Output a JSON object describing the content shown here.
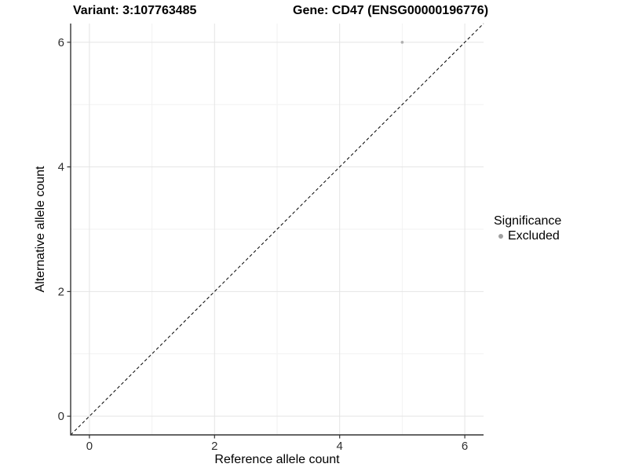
{
  "header": {
    "variant_title": "Variant: 3:107763485",
    "gene_title": "Gene: CD47 (ENSG00000196776)"
  },
  "chart_data": {
    "type": "scatter",
    "xlabel": "Reference allele count",
    "ylabel": "Alternative allele count",
    "xlim": [
      -0.3,
      6.3
    ],
    "ylim": [
      -0.3,
      6.3
    ],
    "x_ticks": [
      0,
      2,
      4,
      6
    ],
    "y_ticks": [
      0,
      2,
      4,
      6
    ],
    "x_minor_ticks": [
      1,
      3,
      5
    ],
    "y_minor_ticks": [
      1,
      3,
      5
    ],
    "grid": "on",
    "points": [
      {
        "x": 5,
        "y": 6,
        "series": "Excluded"
      }
    ],
    "reference_line": {
      "kind": "identity",
      "style": "dashed",
      "color": "#000000"
    },
    "legend": {
      "title": "Significance",
      "position": "right",
      "items": [
        {
          "label": "Excluded",
          "color": "#aaaaaa"
        }
      ]
    },
    "colors": {
      "point": "#b0b0b0",
      "legend_point": "#a0a0a0",
      "grid_major": "#e4e4e4",
      "grid_minor": "#f2f2f2",
      "axis_line": "#333333",
      "tick_label": "#303030"
    }
  }
}
